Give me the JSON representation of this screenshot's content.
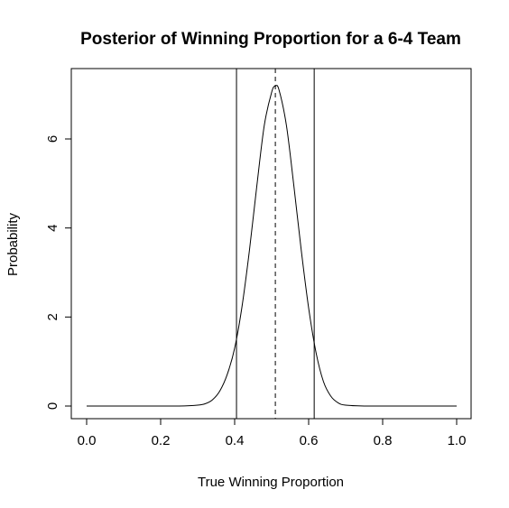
{
  "chart_data": {
    "type": "line",
    "title": "Posterior of Winning Proportion for a 6-4 Team",
    "xlabel": "True Winning Proportion",
    "ylabel": "Probability",
    "xlim": [
      0,
      1
    ],
    "ylim": [
      0,
      7.2
    ],
    "x_ticks": [
      0.0,
      0.2,
      0.4,
      0.6,
      0.8,
      1.0
    ],
    "x_tick_labels": [
      "0.0",
      "0.2",
      "0.4",
      "0.6",
      "0.8",
      "1.0"
    ],
    "y_ticks": [
      0,
      2,
      4,
      6
    ],
    "y_tick_labels": [
      "0",
      "2",
      "4",
      "6"
    ],
    "grid": false,
    "series": [
      {
        "x": [
          0.0,
          0.05,
          0.1,
          0.15,
          0.2,
          0.25,
          0.3,
          0.32,
          0.34,
          0.36,
          0.38,
          0.4,
          0.42,
          0.44,
          0.46,
          0.48,
          0.5,
          0.51,
          0.52,
          0.54,
          0.56,
          0.58,
          0.6,
          0.62,
          0.64,
          0.66,
          0.68,
          0.7,
          0.75,
          0.8,
          0.85,
          0.9,
          0.95,
          1.0
        ],
        "y": [
          0,
          0,
          0,
          0,
          0,
          0,
          0.02,
          0.05,
          0.14,
          0.34,
          0.71,
          1.3,
          2.24,
          3.5,
          4.95,
          6.3,
          7.05,
          7.19,
          7.1,
          6.3,
          4.95,
          3.5,
          2.2,
          1.2,
          0.55,
          0.22,
          0.07,
          0.02,
          0,
          0,
          0,
          0,
          0,
          0
        ]
      }
    ],
    "vertical_lines": [
      {
        "x": 0.405,
        "style": "solid"
      },
      {
        "x": 0.51,
        "style": "dashed"
      },
      {
        "x": 0.615,
        "style": "solid"
      }
    ]
  }
}
